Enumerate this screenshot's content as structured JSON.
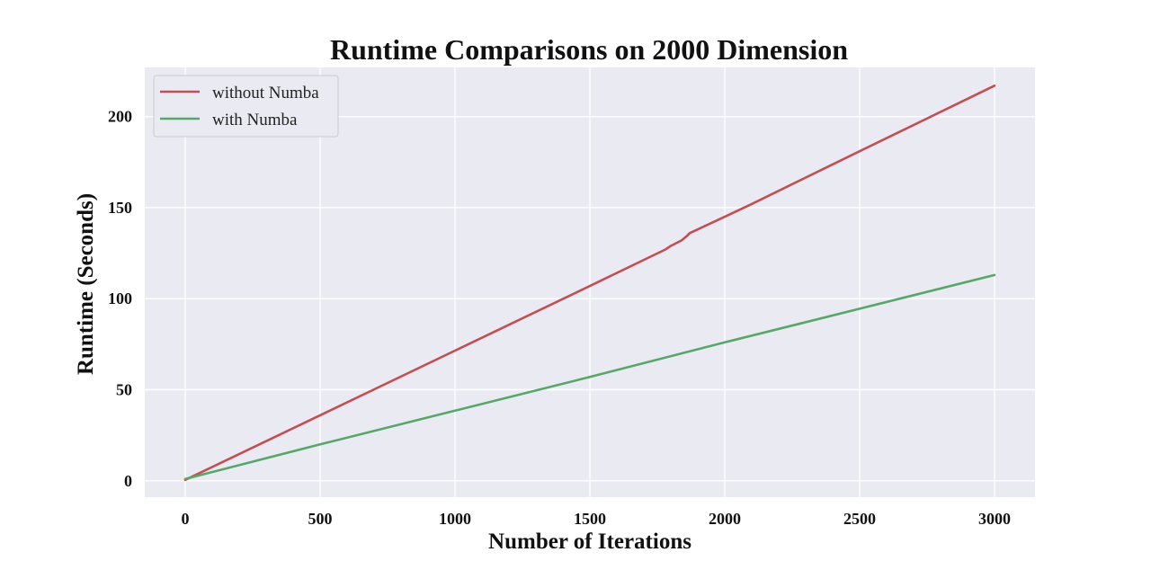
{
  "chart_data": {
    "type": "line",
    "title": "Runtime Comparisons on 2000 Dimension",
    "xlabel": "Number of Iterations",
    "ylabel": "Runtime (Seconds)",
    "xlim": [
      -150,
      3150
    ],
    "ylim": [
      -9,
      227
    ],
    "xticks": [
      0,
      500,
      1000,
      1500,
      2000,
      2500,
      3000
    ],
    "yticks": [
      0,
      50,
      100,
      150,
      200
    ],
    "grid": true,
    "background": "#EAEAF2",
    "legend_position": "top-left",
    "series": [
      {
        "name": "without Numba",
        "color": "#C44E52",
        "x": [
          0,
          500,
          1000,
          1500,
          1780,
          1800,
          1840,
          1860,
          1870,
          2000,
          2100,
          2500,
          3000
        ],
        "y": [
          0.5,
          36,
          71.5,
          107,
          127,
          129,
          132,
          134.5,
          136,
          145,
          152,
          181,
          217
        ]
      },
      {
        "name": "with Numba",
        "color": "#55A868",
        "x": [
          0,
          500,
          1000,
          1500,
          2000,
          2500,
          3000
        ],
        "y": [
          1,
          20,
          38.5,
          57,
          76,
          94.5,
          113
        ]
      }
    ]
  }
}
